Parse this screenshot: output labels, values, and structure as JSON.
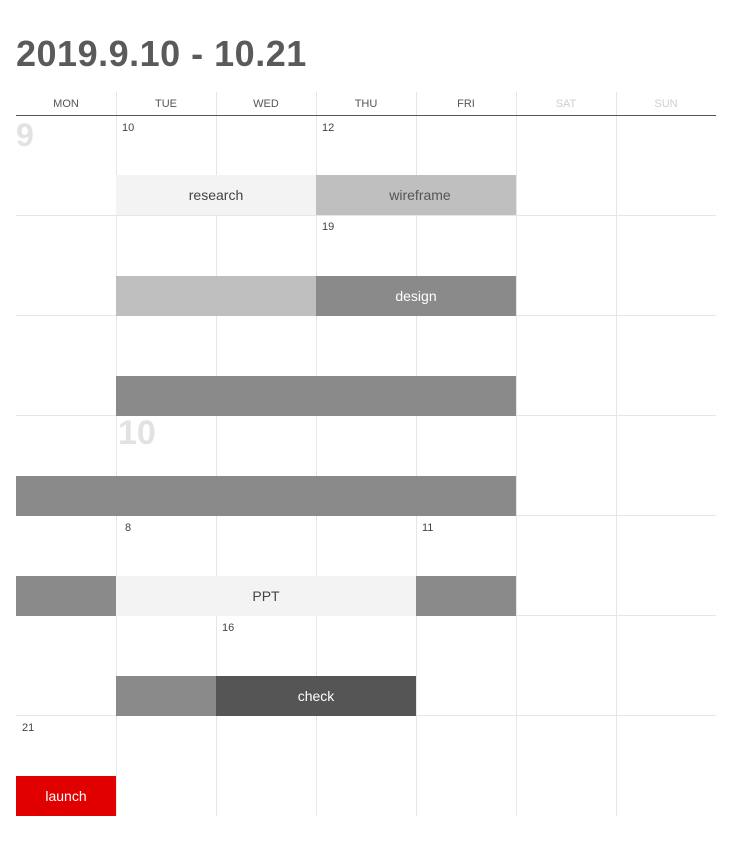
{
  "title": "2019.9.10 - 10.21",
  "weekdays": [
    "MON",
    "TUE",
    "WED",
    "THU",
    "FRI",
    "SAT",
    "SUN"
  ],
  "month_labels": [
    "9",
    "10"
  ],
  "day_numbers": [
    "10",
    "12",
    "19",
    "8",
    "11",
    "16",
    "21"
  ],
  "tasks": {
    "research": "research",
    "wireframe": "wireframe",
    "design": "design",
    "ppt": "PPT",
    "check": "check",
    "launch": "launch"
  },
  "colors": {
    "light_gray": "#f3f3f3",
    "mid_gray": "#bfbfbf",
    "dark_gray": "#8a8a8a",
    "darker_gray": "#555555",
    "launch_red": "#e00000",
    "grid_line": "#e6e6e6"
  }
}
